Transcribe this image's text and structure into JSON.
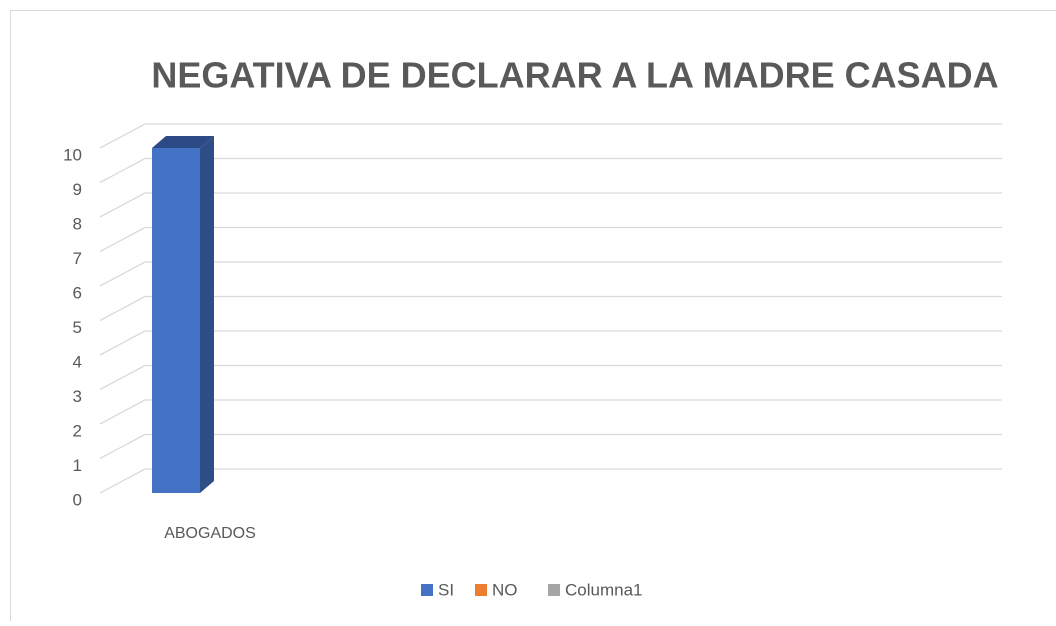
{
  "chart_data": {
    "type": "bar3d",
    "title": "NEGATIVA DE DECLARAR A LA MADRE CASADA",
    "categories": [
      "ABOGADOS"
    ],
    "series": [
      {
        "name": "SI",
        "color": "#4472c4",
        "values": [
          10
        ]
      },
      {
        "name": "NO",
        "color": "#ed7d31",
        "values": [
          null
        ]
      },
      {
        "name": "Columna1",
        "color": "#a5a5a5",
        "values": [
          null
        ]
      }
    ],
    "ylim": [
      0,
      10
    ],
    "yticks": [
      0,
      1,
      2,
      3,
      4,
      5,
      6,
      7,
      8,
      9,
      10
    ],
    "grid": true,
    "legend": "bottom"
  }
}
